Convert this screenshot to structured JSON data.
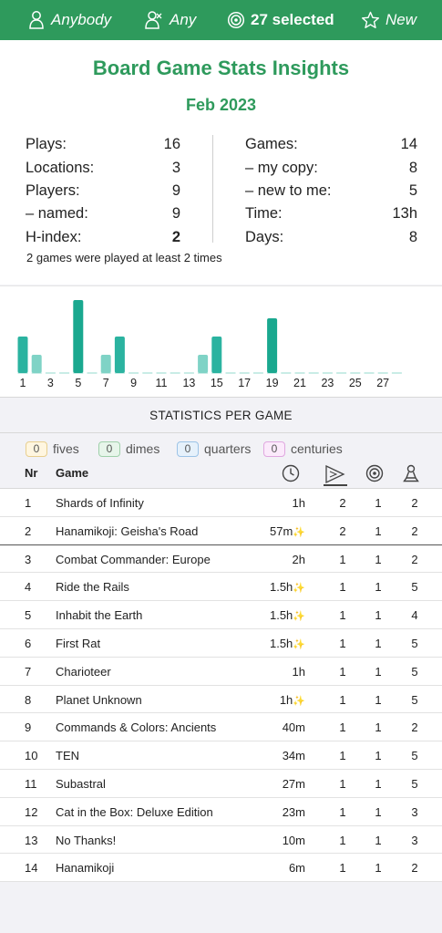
{
  "topbar": {
    "players_filter": "Anybody",
    "winner_filter": "Any",
    "games_filter": "27 selected",
    "new_filter": "New"
  },
  "summary": {
    "title": "Board Game Stats Insights",
    "period": "Feb 2023",
    "left": [
      {
        "label": "Plays:",
        "value": "16",
        "bold": false
      },
      {
        "label": "Locations:",
        "value": "3",
        "bold": false
      },
      {
        "label": "Players:",
        "value": "9",
        "bold": false
      },
      {
        "label": "– named:",
        "value": "9",
        "bold": false
      },
      {
        "label": "H-index:",
        "value": "2",
        "bold": true
      }
    ],
    "right": [
      {
        "label": "Games:",
        "value": "14"
      },
      {
        "label": "– my copy:",
        "value": "8"
      },
      {
        "label": "– new to me:",
        "value": "5"
      },
      {
        "label": "Time:",
        "value": "13h"
      },
      {
        "label": "Days:",
        "value": "8"
      }
    ],
    "note": "2 games were played at least 2 times"
  },
  "chart_data": {
    "type": "bar",
    "title": "",
    "xlabel": "",
    "ylabel": "",
    "categories": [
      1,
      2,
      3,
      4,
      5,
      6,
      7,
      8,
      9,
      10,
      11,
      12,
      13,
      14,
      15,
      16,
      17,
      18,
      19,
      20,
      21,
      22,
      23,
      24,
      25,
      26,
      27,
      28
    ],
    "tick_labels": [
      "1",
      "3",
      "5",
      "7",
      "9",
      "11",
      "13",
      "15",
      "17",
      "19",
      "21",
      "23",
      "25",
      "27"
    ],
    "values": [
      2,
      1,
      0,
      0,
      4,
      0,
      1,
      2,
      0,
      0,
      0,
      0,
      0,
      1,
      2,
      0,
      0,
      0,
      3,
      0,
      0,
      0,
      0,
      0,
      0,
      0,
      0,
      0
    ],
    "shade": [
      "dark",
      "light",
      "none",
      "none",
      "dark",
      "none",
      "light",
      "dark",
      "none",
      "none",
      "none",
      "none",
      "none",
      "light",
      "dark",
      "none",
      "none",
      "none",
      "dark",
      "none",
      "none",
      "none",
      "none",
      "none",
      "none",
      "none",
      "none",
      "none"
    ],
    "ylim": [
      0,
      4
    ],
    "colors": {
      "dark": "#2bb3a0",
      "light": "#7fd3c6",
      "dark_tall": "#1aa88f",
      "baseline": "#c9ece6"
    }
  },
  "section": {
    "title": "STATISTICS PER GAME"
  },
  "legend": {
    "chips": [
      {
        "count": "0",
        "label": "fives",
        "bg": "#fff6e0",
        "border": "#e8cf8f"
      },
      {
        "count": "0",
        "label": "dimes",
        "bg": "#e7f5ea",
        "border": "#9fd0aa"
      },
      {
        "count": "0",
        "label": "quarters",
        "bg": "#e6f1fb",
        "border": "#9cc3e6"
      },
      {
        "count": "0",
        "label": "centuries",
        "bg": "#fbeafb",
        "border": "#e0a8e0"
      }
    ],
    "header": {
      "nr": "Nr",
      "game": "Game"
    }
  },
  "games": [
    {
      "nr": "1",
      "name": "Shards of Infinity",
      "time": "1h",
      "spark": "",
      "plays": "2",
      "sessions": "1",
      "players": "2"
    },
    {
      "nr": "2",
      "name": "Hanamikoji: Geisha's Road",
      "time": "57m",
      "spark": "✨",
      "plays": "2",
      "sessions": "1",
      "players": "2"
    },
    {
      "nr": "3",
      "name": "Combat Commander: Europe",
      "time": "2h",
      "spark": "",
      "plays": "1",
      "sessions": "1",
      "players": "2"
    },
    {
      "nr": "4",
      "name": "Ride the Rails",
      "time": "1.5h",
      "spark": "✨",
      "plays": "1",
      "sessions": "1",
      "players": "5"
    },
    {
      "nr": "5",
      "name": "Inhabit the Earth",
      "time": "1.5h",
      "spark": "✨",
      "plays": "1",
      "sessions": "1",
      "players": "4"
    },
    {
      "nr": "6",
      "name": "First Rat",
      "time": "1.5h",
      "spark": "✨",
      "plays": "1",
      "sessions": "1",
      "players": "5"
    },
    {
      "nr": "7",
      "name": "Charioteer",
      "time": "1h",
      "spark": "",
      "plays": "1",
      "sessions": "1",
      "players": "5"
    },
    {
      "nr": "8",
      "name": "Planet Unknown",
      "time": "1h",
      "spark": "✨",
      "plays": "1",
      "sessions": "1",
      "players": "5"
    },
    {
      "nr": "9",
      "name": "Commands & Colors: Ancients",
      "time": "40m",
      "spark": "",
      "plays": "1",
      "sessions": "1",
      "players": "2"
    },
    {
      "nr": "10",
      "name": "TEN",
      "time": "34m",
      "spark": "",
      "plays": "1",
      "sessions": "1",
      "players": "5"
    },
    {
      "nr": "11",
      "name": "Subastral",
      "time": "27m",
      "spark": "",
      "plays": "1",
      "sessions": "1",
      "players": "5"
    },
    {
      "nr": "12",
      "name": "Cat in the Box: Deluxe Edition",
      "time": "23m",
      "spark": "",
      "plays": "1",
      "sessions": "1",
      "players": "3"
    },
    {
      "nr": "13",
      "name": "No Thanks!",
      "time": "10m",
      "spark": "",
      "plays": "1",
      "sessions": "1",
      "players": "3"
    },
    {
      "nr": "14",
      "name": "Hanamikoji",
      "time": "6m",
      "spark": "",
      "plays": "1",
      "sessions": "1",
      "players": "2"
    }
  ]
}
